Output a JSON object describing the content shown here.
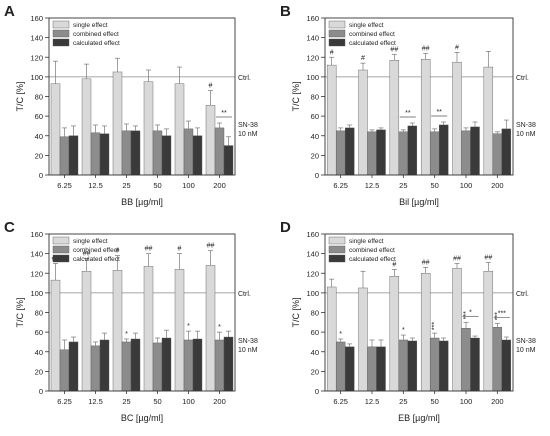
{
  "series_colors": [
    "#d9d9d9",
    "#8c8c8c",
    "#3a3a3a"
  ],
  "chart_data": [
    {
      "type": "bar",
      "panel": "A",
      "categories": [
        "6.25",
        "12.5",
        "25",
        "50",
        "100",
        "200"
      ],
      "xlabel": "BB [µg/ml]",
      "ylabel": "T/C [%]",
      "ylim": [
        0,
        160
      ],
      "yticks": [
        0,
        20,
        40,
        60,
        80,
        100,
        120,
        140,
        160
      ],
      "legend": [
        "single effect",
        "combined effect",
        "calculated effect"
      ],
      "reference_line": {
        "value": 100,
        "label": "Ctrl."
      },
      "side_label": [
        "SN-38",
        "10 nM"
      ],
      "series": [
        {
          "name": "single effect",
          "values": [
            93,
            98,
            105,
            95,
            93,
            71
          ],
          "errors": [
            23,
            15,
            14,
            12,
            17,
            15
          ]
        },
        {
          "name": "combined effect",
          "values": [
            39,
            43,
            45,
            45,
            47,
            48
          ],
          "errors": [
            9,
            8,
            7,
            6,
            8,
            5
          ]
        },
        {
          "name": "calculated effect",
          "values": [
            40,
            42,
            45,
            40,
            40,
            30
          ],
          "errors": [
            10,
            8,
            5,
            7,
            8,
            9
          ]
        }
      ],
      "markers": [
        {
          "category": 5,
          "series": 0,
          "text": "#"
        },
        {
          "category": 5,
          "series": 1,
          "text": "**",
          "bracket": true
        }
      ]
    },
    {
      "type": "bar",
      "panel": "B",
      "categories": [
        "6.25",
        "12.5",
        "25",
        "50",
        "100",
        "200"
      ],
      "xlabel": "Bil [µg/ml]",
      "ylabel": "T/C [%]",
      "ylim": [
        0,
        160
      ],
      "yticks": [
        0,
        20,
        40,
        60,
        80,
        100,
        120,
        140,
        160
      ],
      "legend": [
        "single effect",
        "combined effect",
        "calculated effect"
      ],
      "reference_line": {
        "value": 100,
        "label": "Ctrl."
      },
      "side_label": [
        "SN-38",
        "10 nM"
      ],
      "series": [
        {
          "name": "single effect",
          "values": [
            112,
            107,
            117,
            118,
            115,
            110
          ],
          "errors": [
            8,
            7,
            6,
            6,
            10,
            16
          ]
        },
        {
          "name": "combined effect",
          "values": [
            45,
            44,
            44,
            44,
            45,
            42
          ],
          "errors": [
            3,
            2,
            2,
            3,
            3,
            2
          ]
        },
        {
          "name": "calculated effect",
          "values": [
            48,
            46,
            50,
            51,
            49,
            47
          ],
          "errors": [
            3,
            2,
            3,
            3,
            5,
            9
          ]
        }
      ],
      "markers": [
        {
          "category": 0,
          "series": 0,
          "text": "#"
        },
        {
          "category": 1,
          "series": 0,
          "text": "#"
        },
        {
          "category": 2,
          "series": 0,
          "text": "##"
        },
        {
          "category": 3,
          "series": 0,
          "text": "##"
        },
        {
          "category": 4,
          "series": 0,
          "text": "#"
        },
        {
          "category": 2,
          "series": 1,
          "text": "**",
          "bracket": true
        },
        {
          "category": 3,
          "series": 1,
          "text": "**",
          "bracket": true
        }
      ]
    },
    {
      "type": "bar",
      "panel": "C",
      "categories": [
        "6.25",
        "12.5",
        "25",
        "50",
        "100",
        "200"
      ],
      "xlabel": "BC [µg/ml]",
      "ylabel": "T/C [%]",
      "ylim": [
        0,
        160
      ],
      "yticks": [
        0,
        20,
        40,
        60,
        80,
        100,
        120,
        140,
        160
      ],
      "legend": [
        "single effect",
        "combined effect",
        "calculated effect"
      ],
      "reference_line": {
        "value": 100,
        "label": "Ctrl."
      },
      "side_label": [
        "SN-38",
        "10 nM"
      ],
      "series": [
        {
          "name": "single effect",
          "values": [
            113,
            122,
            123,
            127,
            124,
            128
          ],
          "errors": [
            17,
            13,
            15,
            13,
            16,
            15
          ]
        },
        {
          "name": "combined effect",
          "values": [
            42,
            46,
            50,
            49,
            52,
            52
          ],
          "errors": [
            10,
            4,
            3,
            5,
            9,
            8
          ]
        },
        {
          "name": "calculated effect",
          "values": [
            50,
            52,
            53,
            54,
            53,
            55
          ],
          "errors": [
            5,
            7,
            6,
            8,
            8,
            6
          ]
        }
      ],
      "markers": [
        {
          "category": 0,
          "series": 0,
          "text": "##"
        },
        {
          "category": 1,
          "series": 0,
          "text": "##"
        },
        {
          "category": 2,
          "series": 0,
          "text": "#"
        },
        {
          "category": 3,
          "series": 0,
          "text": "##"
        },
        {
          "category": 4,
          "series": 0,
          "text": "#"
        },
        {
          "category": 5,
          "series": 0,
          "text": "##"
        },
        {
          "category": 2,
          "series": 1,
          "text": "*"
        },
        {
          "category": 4,
          "series": 1,
          "text": "*"
        },
        {
          "category": 5,
          "series": 1,
          "text": "*"
        }
      ]
    },
    {
      "type": "bar",
      "panel": "D",
      "categories": [
        "6.25",
        "12.5",
        "25",
        "50",
        "100",
        "200"
      ],
      "xlabel": "EB [µg/ml]",
      "ylabel": "T/C [%]",
      "ylim": [
        0,
        160
      ],
      "yticks": [
        0,
        20,
        40,
        60,
        80,
        100,
        120,
        140,
        160
      ],
      "legend": [
        "single effect",
        "combined effect",
        "calculated effect"
      ],
      "reference_line": {
        "value": 100,
        "label": "Ctrl."
      },
      "side_label": [
        "SN-38",
        "10 nM"
      ],
      "series": [
        {
          "name": "single effect",
          "values": [
            106,
            105,
            117,
            120,
            125,
            122
          ],
          "errors": [
            8,
            17,
            7,
            6,
            5,
            9
          ]
        },
        {
          "name": "combined effect",
          "values": [
            50,
            45,
            52,
            54,
            64,
            65
          ],
          "errors": [
            3,
            7,
            5,
            5,
            6,
            4
          ]
        },
        {
          "name": "calculated effect",
          "values": [
            45,
            45,
            51,
            51,
            54,
            52
          ],
          "errors": [
            3,
            7,
            3,
            3,
            2,
            3
          ]
        }
      ],
      "markers": [
        {
          "category": 2,
          "series": 0,
          "text": "#"
        },
        {
          "category": 3,
          "series": 0,
          "text": "##"
        },
        {
          "category": 4,
          "series": 0,
          "text": "##"
        },
        {
          "category": 5,
          "series": 0,
          "text": "##"
        },
        {
          "category": 0,
          "series": 1,
          "text": "*"
        },
        {
          "category": 2,
          "series": 1,
          "text": "*"
        },
        {
          "category": 3,
          "series": 1,
          "text": "***",
          "vertical": true
        },
        {
          "category": 4,
          "series": 1,
          "text": "***",
          "vertical": true
        },
        {
          "category": 5,
          "series": 1,
          "text": "***",
          "vertical": true
        },
        {
          "category": 4,
          "series": 1,
          "text": "*",
          "bracket": true
        },
        {
          "category": 5,
          "series": 1,
          "text": "***",
          "bracket": true
        }
      ]
    }
  ]
}
